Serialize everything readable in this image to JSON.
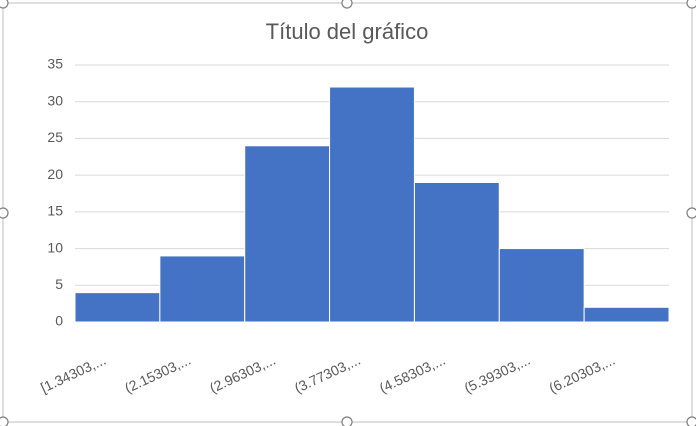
{
  "chart_data": {
    "type": "bar",
    "title": "Título del gráfico",
    "categories": [
      "[1.34303,...",
      "(2.15303,...",
      "(2.96303,...",
      "(3.77303,...",
      "(4.58303,...",
      "(5.39303,...",
      "(6.20303,..."
    ],
    "values": [
      4,
      9,
      24,
      32,
      19,
      10,
      2
    ],
    "color": "#4472c4",
    "ylim": [
      0,
      35
    ],
    "yticks": [
      0,
      5,
      10,
      15,
      20,
      25,
      30,
      35
    ],
    "grid": true
  }
}
